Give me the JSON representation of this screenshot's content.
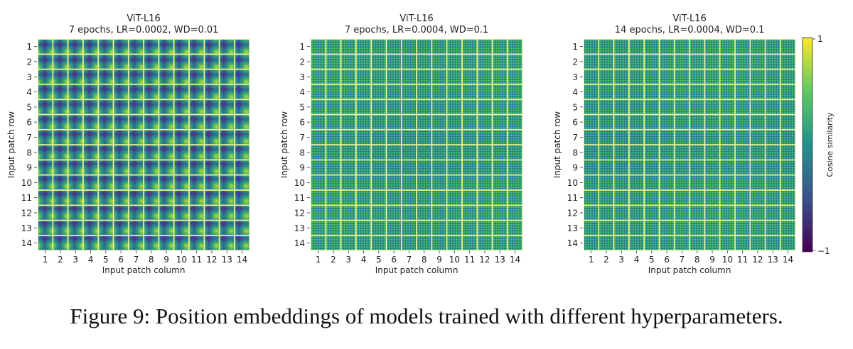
{
  "chart_data": [
    {
      "type": "heatmap",
      "title": "ViT-L16",
      "subtitle": "7 epochs, LR=0.0002, WD=0.01",
      "xlabel": "Input patch column",
      "ylabel": "Input patch row",
      "rows": [
        "1",
        "2",
        "3",
        "4",
        "5",
        "6",
        "7",
        "8",
        "9",
        "10",
        "11",
        "12",
        "13",
        "14"
      ],
      "columns": [
        "1",
        "2",
        "3",
        "4",
        "5",
        "6",
        "7",
        "8",
        "9",
        "10",
        "11",
        "12",
        "13",
        "14"
      ],
      "pattern": "smooth"
    },
    {
      "type": "heatmap",
      "title": "ViT-L16",
      "subtitle": "7 epochs, LR=0.0004, WD=0.1",
      "xlabel": "Input patch column",
      "ylabel": "Input patch row",
      "rows": [
        "1",
        "2",
        "3",
        "4",
        "5",
        "6",
        "7",
        "8",
        "9",
        "10",
        "11",
        "12",
        "13",
        "14"
      ],
      "columns": [
        "1",
        "2",
        "3",
        "4",
        "5",
        "6",
        "7",
        "8",
        "9",
        "10",
        "11",
        "12",
        "13",
        "14"
      ],
      "pattern": "checkered"
    },
    {
      "type": "heatmap",
      "title": "ViT-L16",
      "subtitle": "14 epochs, LR=0.0004, WD=0.1",
      "xlabel": "Input patch column",
      "ylabel": "Input patch row",
      "rows": [
        "1",
        "2",
        "3",
        "4",
        "5",
        "6",
        "7",
        "8",
        "9",
        "10",
        "11",
        "12",
        "13",
        "14"
      ],
      "columns": [
        "1",
        "2",
        "3",
        "4",
        "5",
        "6",
        "7",
        "8",
        "9",
        "10",
        "11",
        "12",
        "13",
        "14"
      ],
      "pattern": "checkered"
    }
  ],
  "colorbar": {
    "label": "Cosine similarity",
    "range": [
      -1,
      1
    ],
    "max_label": "1",
    "min_label": "−1",
    "colormap": "viridis",
    "colors": [
      "#440154",
      "#3b528b",
      "#21918c",
      "#5ec962",
      "#fde725"
    ]
  },
  "caption": "Figure 9: Position embeddings of models trained with different hyperparameters."
}
